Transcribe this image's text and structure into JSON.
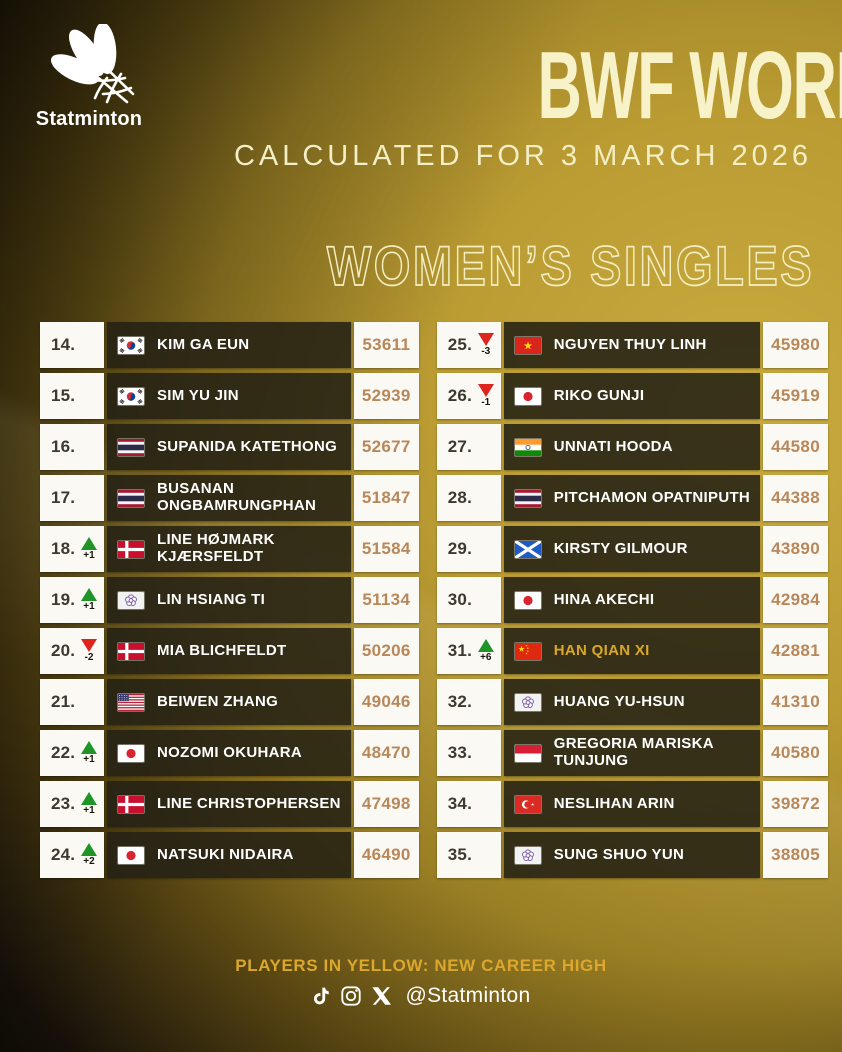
{
  "brand": {
    "name": "Statminton",
    "logo_icon": "shuttlecock-icon"
  },
  "header": {
    "title": "BWF WORLD RANKING",
    "subtitle": "CALCULATED FOR 3 MARCH 2026",
    "category": "WOMEN’S SINGLES"
  },
  "footer": {
    "note": "PLAYERS IN YELLOW: NEW CAREER HIGH",
    "handle": "@Statminton",
    "social_icons": [
      "tiktok-icon",
      "instagram-icon",
      "x-icon"
    ]
  },
  "colors": {
    "gold_bright": "#c9ab3f",
    "gold_mid": "#9a7f24",
    "background_dark": "#000000",
    "cream_title": "#f7f2c7",
    "row_dark_cell": "rgba(36,33,20,0.88)",
    "white_cell": "#faf9f4",
    "rank_text": "#3c392e",
    "points_text": "#b8875a",
    "up_green": "#1f9427",
    "down_red": "#df231d",
    "career_high_yellow": "#d9a82a",
    "note_yellow": "#dca72d"
  },
  "chart_data": {
    "type": "table",
    "title": "BWF WORLD RANKING",
    "subtitle": "CALCULATED FOR 3 MARCH 2026",
    "category": "WOMEN’S SINGLES",
    "columns": [
      "rank",
      "change",
      "country",
      "player",
      "points"
    ],
    "legend": "PLAYERS IN YELLOW: NEW CAREER HIGH",
    "rows_left": [
      {
        "rank": "14.",
        "change": null,
        "delta": "",
        "country": "kr",
        "name": "KIM GA EUN",
        "points": "53611",
        "highlight": false
      },
      {
        "rank": "15.",
        "change": null,
        "delta": "",
        "country": "kr",
        "name": "SIM YU JIN",
        "points": "52939",
        "highlight": false
      },
      {
        "rank": "16.",
        "change": null,
        "delta": "",
        "country": "th",
        "name": "SUPANIDA KATETHONG",
        "points": "52677",
        "highlight": false
      },
      {
        "rank": "17.",
        "change": null,
        "delta": "",
        "country": "th",
        "name": "BUSANAN\nONGBAMRUNGPHAN",
        "points": "51847",
        "highlight": false
      },
      {
        "rank": "18.",
        "change": "up",
        "delta": "+1",
        "country": "dk",
        "name": "LINE HØJMARK\nKJÆRSFELDT",
        "points": "51584",
        "highlight": false
      },
      {
        "rank": "19.",
        "change": "up",
        "delta": "+1",
        "country": "tw",
        "name": "LIN HSIANG TI",
        "points": "51134",
        "highlight": false
      },
      {
        "rank": "20.",
        "change": "down",
        "delta": "-2",
        "country": "dk",
        "name": "MIA BLICHFELDT",
        "points": "50206",
        "highlight": false
      },
      {
        "rank": "21.",
        "change": null,
        "delta": "",
        "country": "us",
        "name": "BEIWEN ZHANG",
        "points": "49046",
        "highlight": false
      },
      {
        "rank": "22.",
        "change": "up",
        "delta": "+1",
        "country": "jp",
        "name": "NOZOMI OKUHARA",
        "points": "48470",
        "highlight": false
      },
      {
        "rank": "23.",
        "change": "up",
        "delta": "+1",
        "country": "dk",
        "name": "LINE CHRISTOPHERSEN",
        "points": "47498",
        "highlight": false
      },
      {
        "rank": "24.",
        "change": "up",
        "delta": "+2",
        "country": "jp",
        "name": "NATSUKI NIDAIRA",
        "points": "46490",
        "highlight": false
      }
    ],
    "rows_right": [
      {
        "rank": "25.",
        "change": "down",
        "delta": "-3",
        "country": "vn",
        "name": "NGUYEN THUY LINH",
        "points": "45980",
        "highlight": false
      },
      {
        "rank": "26.",
        "change": "down",
        "delta": "-1",
        "country": "jp",
        "name": "RIKO GUNJI",
        "points": "45919",
        "highlight": false
      },
      {
        "rank": "27.",
        "change": null,
        "delta": "",
        "country": "in",
        "name": "UNNATI HOODA",
        "points": "44580",
        "highlight": false
      },
      {
        "rank": "28.",
        "change": null,
        "delta": "",
        "country": "th",
        "name": "PITCHAMON OPATNIPUTH",
        "points": "44388",
        "highlight": false
      },
      {
        "rank": "29.",
        "change": null,
        "delta": "",
        "country": "sct",
        "name": "KIRSTY GILMOUR",
        "points": "43890",
        "highlight": false
      },
      {
        "rank": "30.",
        "change": null,
        "delta": "",
        "country": "jp",
        "name": "HINA AKECHI",
        "points": "42984",
        "highlight": false
      },
      {
        "rank": "31.",
        "change": "up",
        "delta": "+6",
        "country": "cn",
        "name": "HAN QIAN XI",
        "points": "42881",
        "highlight": true
      },
      {
        "rank": "32.",
        "change": null,
        "delta": "",
        "country": "tw",
        "name": "HUANG YU-HSUN",
        "points": "41310",
        "highlight": false
      },
      {
        "rank": "33.",
        "change": null,
        "delta": "",
        "country": "id",
        "name": "GREGORIA MARISKA\nTUNJUNG",
        "points": "40580",
        "highlight": false
      },
      {
        "rank": "34.",
        "change": null,
        "delta": "",
        "country": "tr",
        "name": "NESLIHAN ARIN",
        "points": "39872",
        "highlight": false
      },
      {
        "rank": "35.",
        "change": null,
        "delta": "",
        "country": "tw",
        "name": "SUNG SHUO YUN",
        "points": "38805",
        "highlight": false
      }
    ]
  }
}
